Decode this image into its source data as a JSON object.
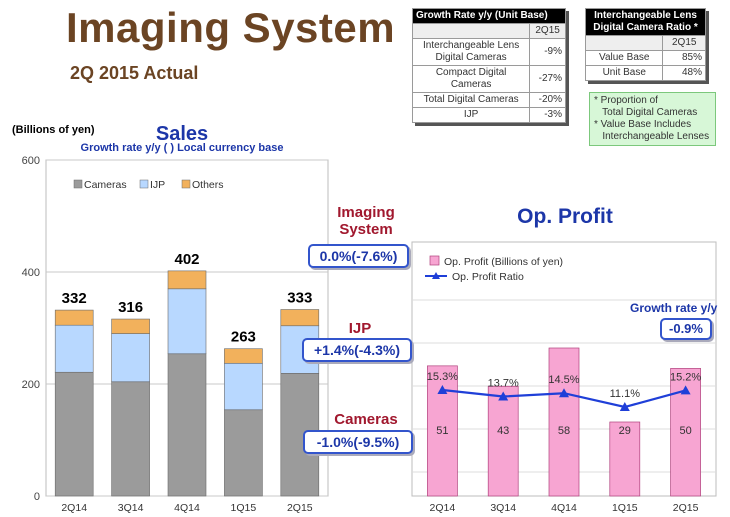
{
  "header": {
    "title": "Imaging System",
    "subtitle": "2Q 2015 Actual"
  },
  "growth_table": {
    "title": "Growth Rate y/y  (Unit Base)",
    "column": "2Q15",
    "rows": [
      {
        "label": "Interchangeable Lens\nDigital Cameras",
        "value": "-9%"
      },
      {
        "label": "Compact Digital\nCameras",
        "value": "-27%"
      },
      {
        "label": "Total Digital Cameras",
        "value": "-20%"
      },
      {
        "label": "IJP",
        "value": "-3%"
      }
    ]
  },
  "ratio_table": {
    "title": "Interchangeable Lens\nDigital Camera Ratio *",
    "column": "2Q15",
    "rows": [
      {
        "label": "Value Base",
        "value": "85%"
      },
      {
        "label": "Unit Base",
        "value": "48%"
      }
    ]
  },
  "note": {
    "line1": "* Proportion of",
    "line2": "   Total Digital Cameras",
    "line3": "* Value Base Includes",
    "line4": "   Interchangeable Lenses"
  },
  "segments": {
    "imaging_label": "Imaging\nSystem",
    "imaging_value": "0.0%(-7.6%)",
    "ijp_label": "IJP",
    "ijp_value": "+1.4%(-4.3%)",
    "cameras_label": "Cameras",
    "cameras_value": "-1.0%(-9.5%)"
  },
  "profit_growth": {
    "label": "Growth rate y/y",
    "value": "-0.9%"
  },
  "colors": {
    "cameras": "#9b9b9b",
    "ijp": "#b8d8ff",
    "others": "#f2b15c",
    "profit_bar": "#f7a5d2",
    "ratio_line": "#1f3fd8",
    "accent_red": "#a1182e",
    "accent_blue": "#1c36a8",
    "title_brown": "#6b4423"
  },
  "chart_data": [
    {
      "type": "bar",
      "stacked": true,
      "title": "Sales",
      "subtitle": "Growth rate y/y  ( ) Local currency base",
      "ylabel": "(Billions of yen)",
      "categories": [
        "2Q14",
        "3Q14",
        "4Q14",
        "1Q15",
        "2Q15"
      ],
      "series": [
        {
          "name": "Cameras",
          "values": [
            221,
            204,
            254,
            154,
            219
          ]
        },
        {
          "name": "IJP",
          "values": [
            84,
            86,
            116,
            83,
            85
          ]
        },
        {
          "name": "Others",
          "values": [
            27,
            26,
            32,
            26,
            29
          ]
        }
      ],
      "totals": [
        332,
        316,
        402,
        263,
        333
      ],
      "ylim": [
        0,
        600
      ],
      "yticks": [
        0,
        200,
        400,
        600
      ],
      "grid": true,
      "legend": "top-left"
    },
    {
      "type": "bar",
      "title": "Op. Profit",
      "categories": [
        "2Q14",
        "3Q14",
        "4Q14",
        "1Q15",
        "2Q15"
      ],
      "series": [
        {
          "name": "Op. Profit (Billions of yen)",
          "values": [
            51,
            43,
            58,
            29,
            50
          ],
          "labels": [
            "51",
            "43",
            "58",
            "29",
            "50"
          ]
        },
        {
          "name": "Op. Profit Ratio",
          "type": "line",
          "values": [
            15.3,
            13.7,
            14.5,
            11.1,
            15.2
          ],
          "labels": [
            "15.3%",
            "13.7%",
            "14.5%",
            "11.1%",
            "15.2%"
          ]
        }
      ],
      "legend": "top-left"
    }
  ]
}
